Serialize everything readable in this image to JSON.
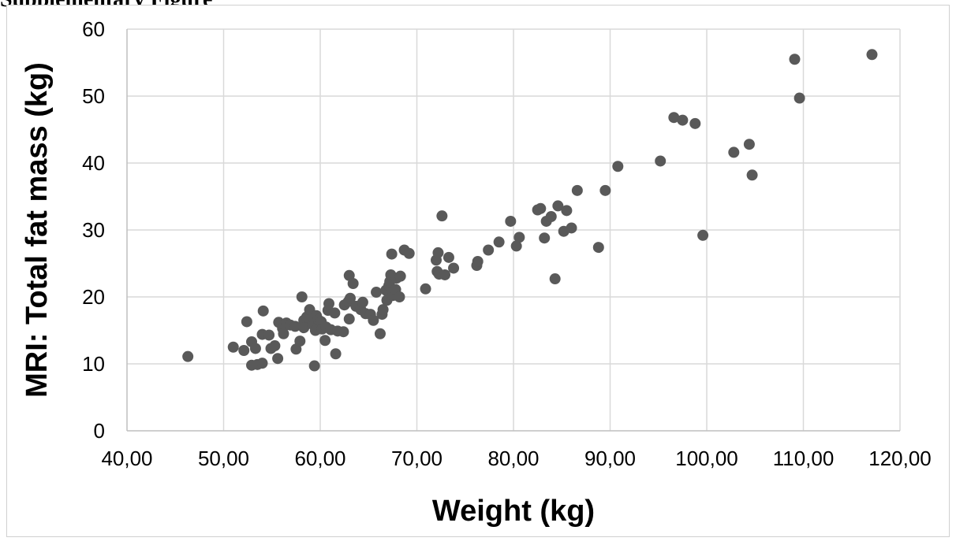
{
  "page": {
    "heading": "Supplementary Figure"
  },
  "chart_data": {
    "type": "scatter",
    "title": "",
    "xlabel": "Weight (kg)",
    "ylabel": "MRI: Total fat mass (kg)",
    "xlim": [
      40,
      120
    ],
    "ylim": [
      0,
      60
    ],
    "x_ticks": [
      "40,00",
      "50,00",
      "60,00",
      "70,00",
      "80,00",
      "90,00",
      "100,00",
      "110,00",
      "120,00"
    ],
    "y_ticks": [
      "0",
      "10",
      "20",
      "30",
      "40",
      "50",
      "60"
    ],
    "x_tick_values": [
      40,
      50,
      60,
      70,
      80,
      90,
      100,
      110,
      120
    ],
    "y_tick_values": [
      0,
      10,
      20,
      30,
      40,
      50,
      60
    ],
    "grid": true,
    "legend": "none",
    "marker_color": "#595959",
    "series": [
      {
        "points": [
          [
            46.3,
            11.1
          ],
          [
            51.0,
            12.5
          ],
          [
            52.1,
            12.0
          ],
          [
            52.4,
            16.3
          ],
          [
            52.9,
            13.3
          ],
          [
            53.3,
            12.3
          ],
          [
            52.9,
            9.8
          ],
          [
            53.5,
            9.9
          ],
          [
            54.0,
            10.1
          ],
          [
            54.0,
            14.4
          ],
          [
            54.1,
            17.9
          ],
          [
            54.7,
            14.3
          ],
          [
            54.9,
            12.3
          ],
          [
            55.3,
            12.7
          ],
          [
            55.6,
            10.8
          ],
          [
            55.7,
            16.2
          ],
          [
            56.1,
            15.3
          ],
          [
            56.2,
            14.5
          ],
          [
            56.5,
            16.1
          ],
          [
            56.9,
            15.8
          ],
          [
            57.4,
            15.6
          ],
          [
            57.5,
            12.2
          ],
          [
            57.9,
            13.4
          ],
          [
            58.1,
            20.0
          ],
          [
            58.3,
            16.5
          ],
          [
            58.3,
            15.4
          ],
          [
            58.6,
            17.0
          ],
          [
            58.9,
            18.1
          ],
          [
            59.2,
            15.9
          ],
          [
            59.3,
            16.9
          ],
          [
            59.4,
            9.7
          ],
          [
            59.5,
            15.0
          ],
          [
            59.6,
            17.2
          ],
          [
            59.8,
            16.6
          ],
          [
            60.1,
            16.3
          ],
          [
            60.2,
            15.2
          ],
          [
            60.5,
            13.5
          ],
          [
            60.6,
            15.5
          ],
          [
            60.8,
            18.0
          ],
          [
            60.9,
            19.0
          ],
          [
            61.1,
            15.1
          ],
          [
            61.5,
            17.6
          ],
          [
            61.6,
            11.5
          ],
          [
            61.8,
            14.9
          ],
          [
            62.4,
            14.8
          ],
          [
            62.5,
            18.8
          ],
          [
            62.9,
            19.3
          ],
          [
            63.0,
            23.2
          ],
          [
            63.0,
            16.7
          ],
          [
            63.1,
            19.8
          ],
          [
            63.4,
            22.0
          ],
          [
            63.7,
            18.6
          ],
          [
            64.2,
            18.1
          ],
          [
            64.4,
            19.2
          ],
          [
            64.7,
            17.5
          ],
          [
            65.2,
            17.4
          ],
          [
            65.5,
            16.5
          ],
          [
            65.8,
            20.7
          ],
          [
            66.2,
            14.5
          ],
          [
            66.4,
            17.4
          ],
          [
            66.5,
            18.1
          ],
          [
            66.8,
            21.0
          ],
          [
            66.9,
            19.5
          ],
          [
            67.1,
            21.7
          ],
          [
            67.2,
            22.3
          ],
          [
            67.3,
            23.3
          ],
          [
            67.4,
            26.4
          ],
          [
            67.5,
            20.2
          ],
          [
            67.8,
            21.1
          ],
          [
            67.9,
            22.8
          ],
          [
            68.2,
            20.0
          ],
          [
            68.3,
            23.1
          ],
          [
            68.7,
            27.0
          ],
          [
            69.2,
            26.5
          ],
          [
            70.9,
            21.2
          ],
          [
            72.0,
            25.5
          ],
          [
            72.1,
            23.8
          ],
          [
            72.2,
            26.6
          ],
          [
            72.3,
            23.4
          ],
          [
            72.6,
            32.1
          ],
          [
            72.9,
            23.3
          ],
          [
            73.3,
            25.9
          ],
          [
            73.8,
            24.3
          ],
          [
            76.2,
            24.7
          ],
          [
            76.3,
            25.3
          ],
          [
            77.4,
            27.0
          ],
          [
            78.5,
            28.2
          ],
          [
            79.7,
            31.3
          ],
          [
            80.3,
            27.6
          ],
          [
            80.6,
            28.9
          ],
          [
            82.5,
            33.0
          ],
          [
            82.8,
            33.2
          ],
          [
            83.2,
            28.8
          ],
          [
            83.4,
            31.3
          ],
          [
            83.9,
            32.0
          ],
          [
            84.3,
            22.7
          ],
          [
            84.6,
            33.6
          ],
          [
            85.2,
            29.8
          ],
          [
            85.5,
            32.9
          ],
          [
            86.0,
            30.3
          ],
          [
            86.6,
            35.9
          ],
          [
            88.8,
            27.4
          ],
          [
            89.5,
            35.9
          ],
          [
            90.8,
            39.5
          ],
          [
            95.2,
            40.3
          ],
          [
            96.6,
            46.8
          ],
          [
            97.5,
            46.4
          ],
          [
            98.8,
            45.9
          ],
          [
            99.6,
            29.2
          ],
          [
            102.8,
            41.6
          ],
          [
            104.4,
            42.8
          ],
          [
            104.7,
            38.2
          ],
          [
            109.1,
            55.5
          ],
          [
            109.6,
            49.7
          ],
          [
            117.1,
            56.2
          ]
        ]
      }
    ]
  }
}
